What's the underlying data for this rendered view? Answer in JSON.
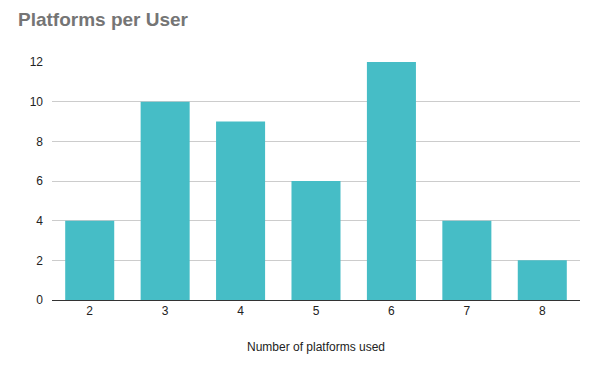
{
  "chart_data": {
    "type": "bar",
    "title": "Platforms per User",
    "x_label": "Number of platforms used",
    "categories": [
      "2",
      "3",
      "4",
      "5",
      "6",
      "7",
      "8"
    ],
    "values": [
      4,
      10,
      9,
      6,
      12,
      4,
      2
    ],
    "color": "#46bdc6",
    "ylim": [
      0,
      12
    ],
    "yticks": [
      0,
      2,
      4,
      6,
      8,
      10,
      12
    ],
    "grid": true
  }
}
